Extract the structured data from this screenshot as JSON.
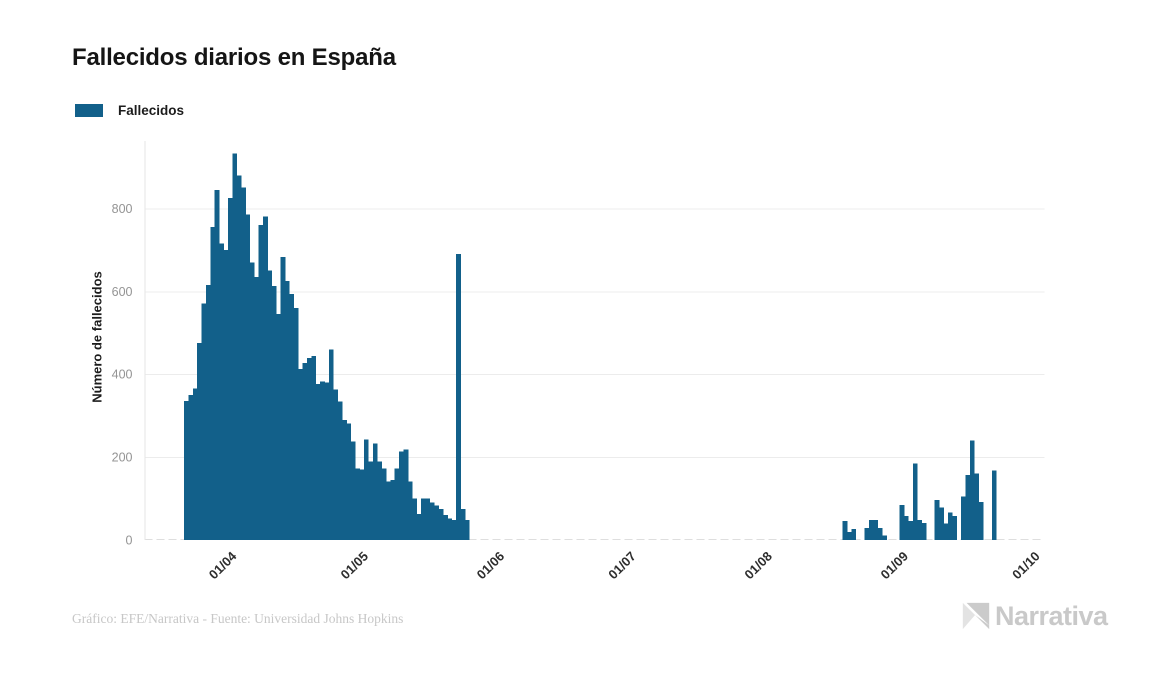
{
  "title": "Fallecidos diarios en España",
  "legend": {
    "label": "Fallecidos",
    "color": "#12608A"
  },
  "y_axis": {
    "label": "Número de fallecidos",
    "ticks": [
      0,
      200,
      400,
      600,
      800
    ]
  },
  "x_axis": {
    "ticks": [
      {
        "label": "01/04",
        "day": 20
      },
      {
        "label": "01/05",
        "day": 50
      },
      {
        "label": "01/06",
        "day": 81
      },
      {
        "label": "01/07",
        "day": 111
      },
      {
        "label": "01/08",
        "day": 142
      },
      {
        "label": "01/09",
        "day": 173
      },
      {
        "label": "01/10",
        "day": 203
      }
    ]
  },
  "footer": {
    "credit": "Gráfico: EFE/Narrativa - Fuente: Universidad Johns Hopkins"
  },
  "brand": {
    "name": "Narrativa"
  },
  "chart_data": {
    "type": "bar",
    "title": "Fallecidos diarios en España",
    "series_name": "Fallecidos",
    "bar_color": "#12608A",
    "xlabel": "",
    "ylabel": "Número de fallecidos",
    "ylim": [
      0,
      953
    ],
    "grid": true,
    "legend_position": "top-left",
    "x_domain": [
      "12/03/2020",
      "02/10/2020"
    ],
    "start_date": "21/03/2020",
    "end_date": "30/09/2020",
    "start_day_offset": 9,
    "daily_values": [
      335,
      350,
      365,
      475,
      570,
      615,
      755,
      845,
      715,
      700,
      825,
      932,
      880,
      850,
      785,
      670,
      635,
      760,
      780,
      650,
      613,
      545,
      683,
      625,
      594,
      560,
      412,
      427,
      439,
      444,
      376,
      383,
      380,
      460,
      363,
      334,
      289,
      281,
      238,
      172,
      170,
      242,
      189,
      233,
      189,
      172,
      141,
      145,
      172,
      213,
      218,
      141,
      100,
      63,
      100,
      100,
      90,
      83,
      75,
      60,
      52,
      48,
      690,
      75,
      48,
      0,
      0,
      0,
      0,
      0,
      0,
      0,
      0,
      0,
      0,
      0,
      0,
      0,
      0,
      0,
      0,
      0,
      0,
      0,
      0,
      0,
      0,
      0,
      0,
      0,
      0,
      0,
      0,
      0,
      0,
      0,
      0,
      0,
      0,
      0,
      0,
      0,
      0,
      0,
      0,
      0,
      0,
      0,
      0,
      0,
      0,
      0,
      0,
      0,
      0,
      0,
      0,
      0,
      0,
      0,
      0,
      0,
      0,
      0,
      0,
      0,
      0,
      0,
      0,
      0,
      0,
      0,
      0,
      0,
      0,
      0,
      0,
      0,
      0,
      0,
      0,
      0,
      0,
      0,
      0,
      0,
      0,
      0,
      0,
      0,
      46,
      19,
      26,
      0,
      0,
      29,
      48,
      48,
      29,
      11,
      0,
      0,
      0,
      85,
      58,
      46,
      185,
      48,
      41,
      0,
      0,
      97,
      79,
      40,
      66,
      58,
      0,
      105,
      157,
      240,
      160,
      92,
      0,
      0,
      168,
      0,
      0,
      0,
      0,
      0,
      0,
      0,
      0,
      0
    ]
  }
}
